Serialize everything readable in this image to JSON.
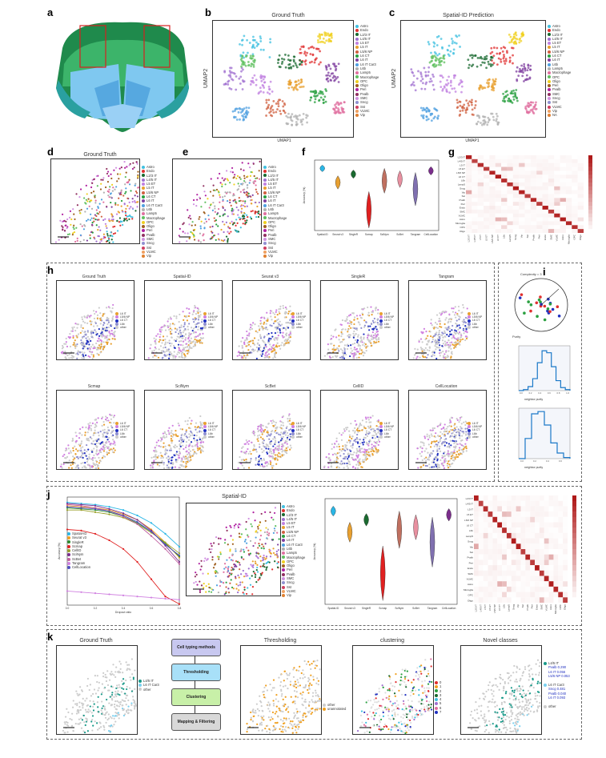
{
  "panels": {
    "a": "a",
    "b": "b",
    "c": "c",
    "d": "d",
    "e": "e",
    "f": "f",
    "g": "g",
    "h": "h",
    "i": "i",
    "j": "j",
    "k": "k"
  },
  "titles": {
    "b": "Ground Truth",
    "c": "Spatial-ID Prediction",
    "d": "Ground Truth",
    "j_scatter": "Spatial-ID",
    "k1": "Ground Truth",
    "k2": "Thresholding",
    "k3": "clustering",
    "k4": "Novel classes"
  },
  "axes": {
    "umap1": "UMAP1",
    "umap2": "UMAP2",
    "accuracy": "Accuracy (%)",
    "dropout": "Dropout ratio",
    "complexity": "Complexity = 3"
  },
  "legend_main": [
    "Astro",
    "Endo",
    "L2/3 IT",
    "L4/5 IT",
    "L5 ET",
    "L5 IT",
    "L5/6 NP",
    "L6 CT",
    "L6 IT",
    "L6 IT Car3",
    "L6b",
    "Lamp5",
    "Macrophage",
    "OPC",
    "Oligo",
    "Peri",
    "Pvalb",
    "SMC",
    "Sncg",
    "Sst",
    "VLMC",
    "Vip"
  ],
  "legend_c": [
    "Astro",
    "Endo",
    "L2/3 IT",
    "L4/5 IT",
    "L5 ET",
    "L5 IT",
    "L5/6 NP",
    "L6 CT",
    "L6 IT",
    "L6b",
    "Lamp5",
    "Macrophage",
    "OPC",
    "Oligo",
    "Peri",
    "Pvalb",
    "SMC",
    "Sncg",
    "Sst",
    "VLMC",
    "Vip",
    "NA"
  ],
  "legend_h": [
    "L6 IT",
    "L5/6 NP",
    "L6 CT",
    "L6b",
    "other"
  ],
  "legend_k1": [
    "L4/5 IT",
    "L6 IT Car3",
    "other"
  ],
  "legend_k2": [
    "other",
    "unannotated"
  ],
  "legend_k3": [
    "0",
    "1",
    "2",
    "3",
    "4",
    "5",
    "6",
    "7"
  ],
  "legend_k4": {
    "g1": "L4/5 IT",
    "g1_items": [
      "Pvalb",
      "L6 IT",
      "L5/6 NP"
    ],
    "g1_vals": [
      "0.290",
      "0.056",
      "0.053"
    ],
    "g2": "L6 IT Car3",
    "g2_items": [
      "Sncg",
      "Pvalb",
      "L6 IT"
    ],
    "g2_vals": [
      "0.481",
      "0.040",
      "0.093"
    ],
    "other": "other"
  },
  "h_titles": [
    "Ground Truth",
    "Spatial-ID",
    "Seurat v3",
    "SingleR",
    "Tangram",
    "Scmap",
    "SciNym",
    "ScBet",
    "CellID",
    "CellLocation"
  ],
  "methods": [
    "Spatial-ID",
    "Seurat v3",
    "SingleR",
    "Scmap",
    "SciNym",
    "ScBet",
    "Tangram",
    "CellLocation"
  ],
  "methods_violin": [
    "Spatial-ID",
    "Seurat v3",
    "SingleR",
    "Scmap",
    "SciNym",
    "ScBet",
    "Tangram",
    "CellLocation"
  ],
  "legend_j": [
    "Spatial-ID",
    "Seurat v3",
    "SingleR",
    "Scmap",
    "CellID",
    "SciNym",
    "ScBet",
    "Tangram",
    "CellLocation"
  ],
  "g_labels": [
    "L2/3 IT",
    "L4/5 IT",
    "L5 IT",
    "L5 ET",
    "L5/6 NP",
    "L6 CT",
    "L6b",
    "Lamp5",
    "Sncg",
    "Vip",
    "Sst",
    "Pvalb",
    "Peri",
    "Endo",
    "SMC",
    "VLMC",
    "Astro",
    "Microglia",
    "OPC",
    "Oligo"
  ],
  "flow": [
    "Cell typing methods",
    "Thresholding",
    "Clustering",
    "Mapping & Filtering"
  ],
  "i_labels": {
    "purity": "Purity",
    "hist1": "neighbor purity",
    "hist2": "neighbor purity"
  },
  "colors": {
    "umap_colors": [
      "#2ca02c",
      "#d62728",
      "#1f77b4",
      "#9467bd",
      "#ff7f0e",
      "#8c564b",
      "#e377c2",
      "#17becf",
      "#bcbd22",
      "#7f7f7f",
      "#aec7e8",
      "#98df8a",
      "#ff9896",
      "#c5b0d5",
      "#f7b6d2"
    ]
  },
  "chart_data": [
    {
      "type": "line",
      "title": "Accuracy vs dropout",
      "xlabel": "Dropout ratio",
      "ylabel": "Accuracy (%)",
      "x": [
        0,
        0.1,
        0.2,
        0.3,
        0.4,
        0.5,
        0.6,
        0.7,
        0.8
      ],
      "xticks": [
        "0.0",
        "0.2",
        "0.4",
        "0.6",
        "0.8"
      ],
      "ylim": [
        0,
        100
      ],
      "series": [
        {
          "name": "Spatial-ID",
          "values": [
            95,
            94,
            93,
            91,
            88,
            83,
            76,
            66,
            54
          ],
          "color": "#29b6e6"
        },
        {
          "name": "Seurat v3",
          "values": [
            92,
            91,
            90,
            88,
            84,
            79,
            70,
            58,
            44
          ],
          "color": "#f0a020"
        },
        {
          "name": "SingleR",
          "values": [
            90,
            89,
            88,
            86,
            82,
            76,
            68,
            57,
            45
          ],
          "color": "#2e8b2e"
        },
        {
          "name": "Scmap",
          "values": [
            70,
            69,
            66,
            60,
            52,
            40,
            24,
            8,
            1
          ],
          "color": "#e02020"
        },
        {
          "name": "CellID",
          "values": [
            88,
            88,
            86,
            84,
            81,
            75,
            67,
            58,
            48
          ],
          "color": "#9aa02a"
        },
        {
          "name": "SciNym",
          "values": [
            94,
            93,
            92,
            89,
            85,
            79,
            69,
            55,
            40
          ],
          "color": "#7b2d8c"
        },
        {
          "name": "ScBet",
          "values": [
            93,
            92,
            90,
            87,
            82,
            75,
            64,
            52,
            38
          ],
          "color": "#c060a0"
        },
        {
          "name": "Tangram",
          "values": [
            13,
            12,
            11,
            10,
            9,
            8,
            7,
            6,
            5
          ],
          "color": "#d080e0"
        },
        {
          "name": "CellLocation",
          "values": [
            91,
            90,
            89,
            87,
            83,
            77,
            68,
            56,
            46
          ],
          "color": "#5050c0"
        }
      ]
    },
    {
      "type": "bar",
      "title": "neighbor purity histogram",
      "categories": [
        "0.0",
        "0.1",
        "0.2",
        "0.3",
        "0.4",
        "0.5",
        "0.6",
        "0.7",
        "0.8",
        "0.9",
        "1.0"
      ],
      "values": [
        0,
        1,
        4,
        12,
        28,
        40,
        38,
        24,
        10,
        3,
        1
      ],
      "ylim": [
        0,
        45
      ]
    },
    {
      "type": "bar",
      "title": "neighbor purity histogram 2",
      "categories": [
        "0.0",
        "0.1",
        "0.2",
        "0.3",
        "0.4",
        "0.5",
        "0.6",
        "0.7"
      ],
      "values": [
        0,
        18,
        40,
        42,
        30,
        14,
        5,
        1
      ],
      "ylim": [
        0,
        45
      ]
    }
  ]
}
